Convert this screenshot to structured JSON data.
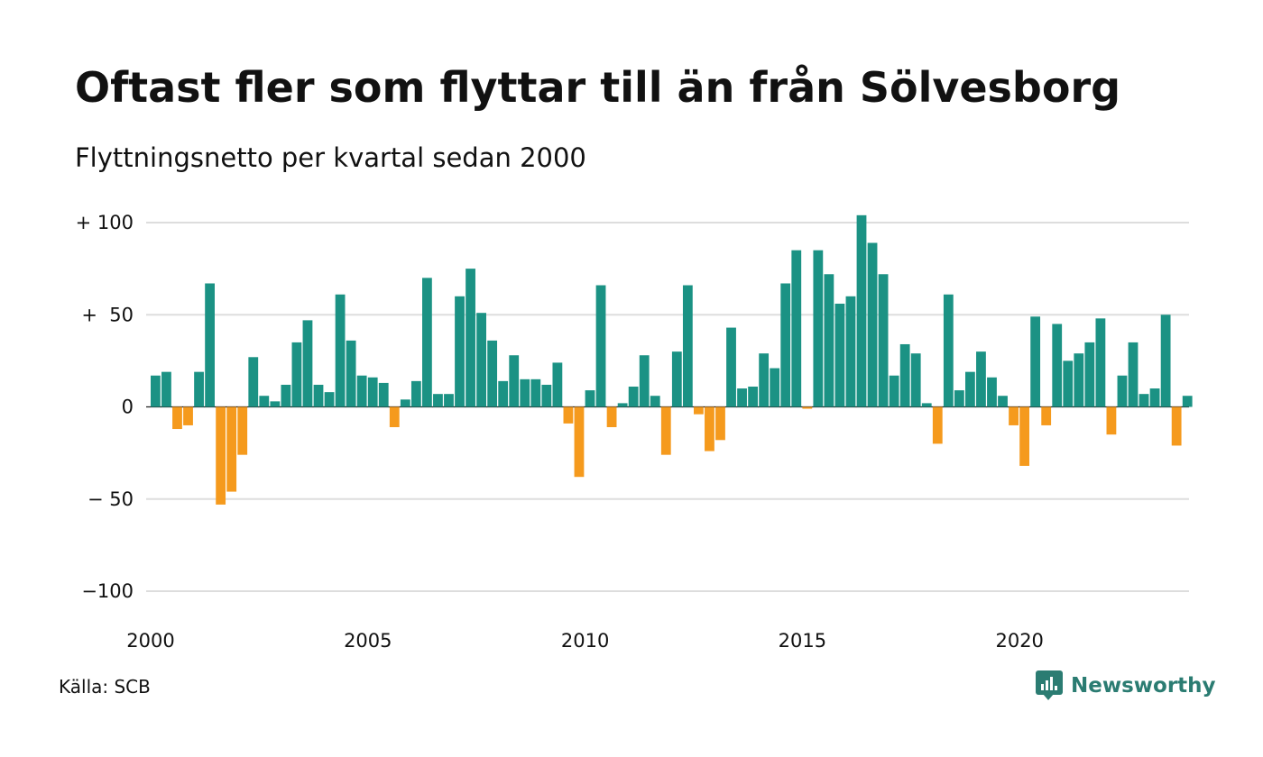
{
  "title": "Oftast fler som flyttar till än från Sölvesborg",
  "subtitle": "Flyttningsnetto per kvartal sedan 2000",
  "source": "Källa: SCB",
  "brand": {
    "name": "Newsworthy",
    "icon": "newsworthy-logo-icon"
  },
  "colors": {
    "positive": "#1b9284",
    "negative": "#f59a1d",
    "grid": "#dddddd",
    "brand": "#2b7c72"
  },
  "chart_data": {
    "type": "bar",
    "title": "Oftast fler som flyttar till än från Sölvesborg",
    "subtitle": "Flyttningsnetto per kvartal sedan 2000",
    "xlabel": "",
    "ylabel": "",
    "ylim": [
      -100,
      100
    ],
    "grid": true,
    "y_ticks": [
      {
        "value": 100,
        "label": "+ 100"
      },
      {
        "value": 50,
        "label": "+  50"
      },
      {
        "value": 0,
        "label": "0"
      },
      {
        "value": -50,
        "label": "− 50"
      },
      {
        "value": -100,
        "label": "−100"
      }
    ],
    "x_ticks": [
      {
        "value": 2000,
        "label": "2000"
      },
      {
        "value": 2005,
        "label": "2005"
      },
      {
        "value": 2010,
        "label": "2010"
      },
      {
        "value": 2015,
        "label": "2015"
      },
      {
        "value": 2020,
        "label": "2020"
      }
    ],
    "start_year": 2000,
    "values": [
      17,
      19,
      -12,
      -10,
      19,
      67,
      -53,
      -46,
      -26,
      27,
      6,
      3,
      12,
      35,
      47,
      12,
      8,
      61,
      36,
      17,
      16,
      13,
      -11,
      4,
      14,
      70,
      7,
      7,
      60,
      75,
      51,
      36,
      14,
      28,
      15,
      15,
      12,
      24,
      -9,
      -38,
      9,
      66,
      -11,
      2,
      11,
      28,
      6,
      -26,
      30,
      66,
      -4,
      -24,
      -18,
      43,
      10,
      11,
      29,
      21,
      67,
      85,
      -1,
      85,
      72,
      56,
      60,
      104,
      89,
      72,
      17,
      34,
      29,
      2,
      -20,
      61,
      9,
      19,
      30,
      16,
      6,
      -10,
      -32,
      49,
      -10,
      45,
      25,
      29,
      35,
      48,
      -15,
      17,
      35,
      7,
      10,
      50,
      -21,
      6
    ]
  }
}
